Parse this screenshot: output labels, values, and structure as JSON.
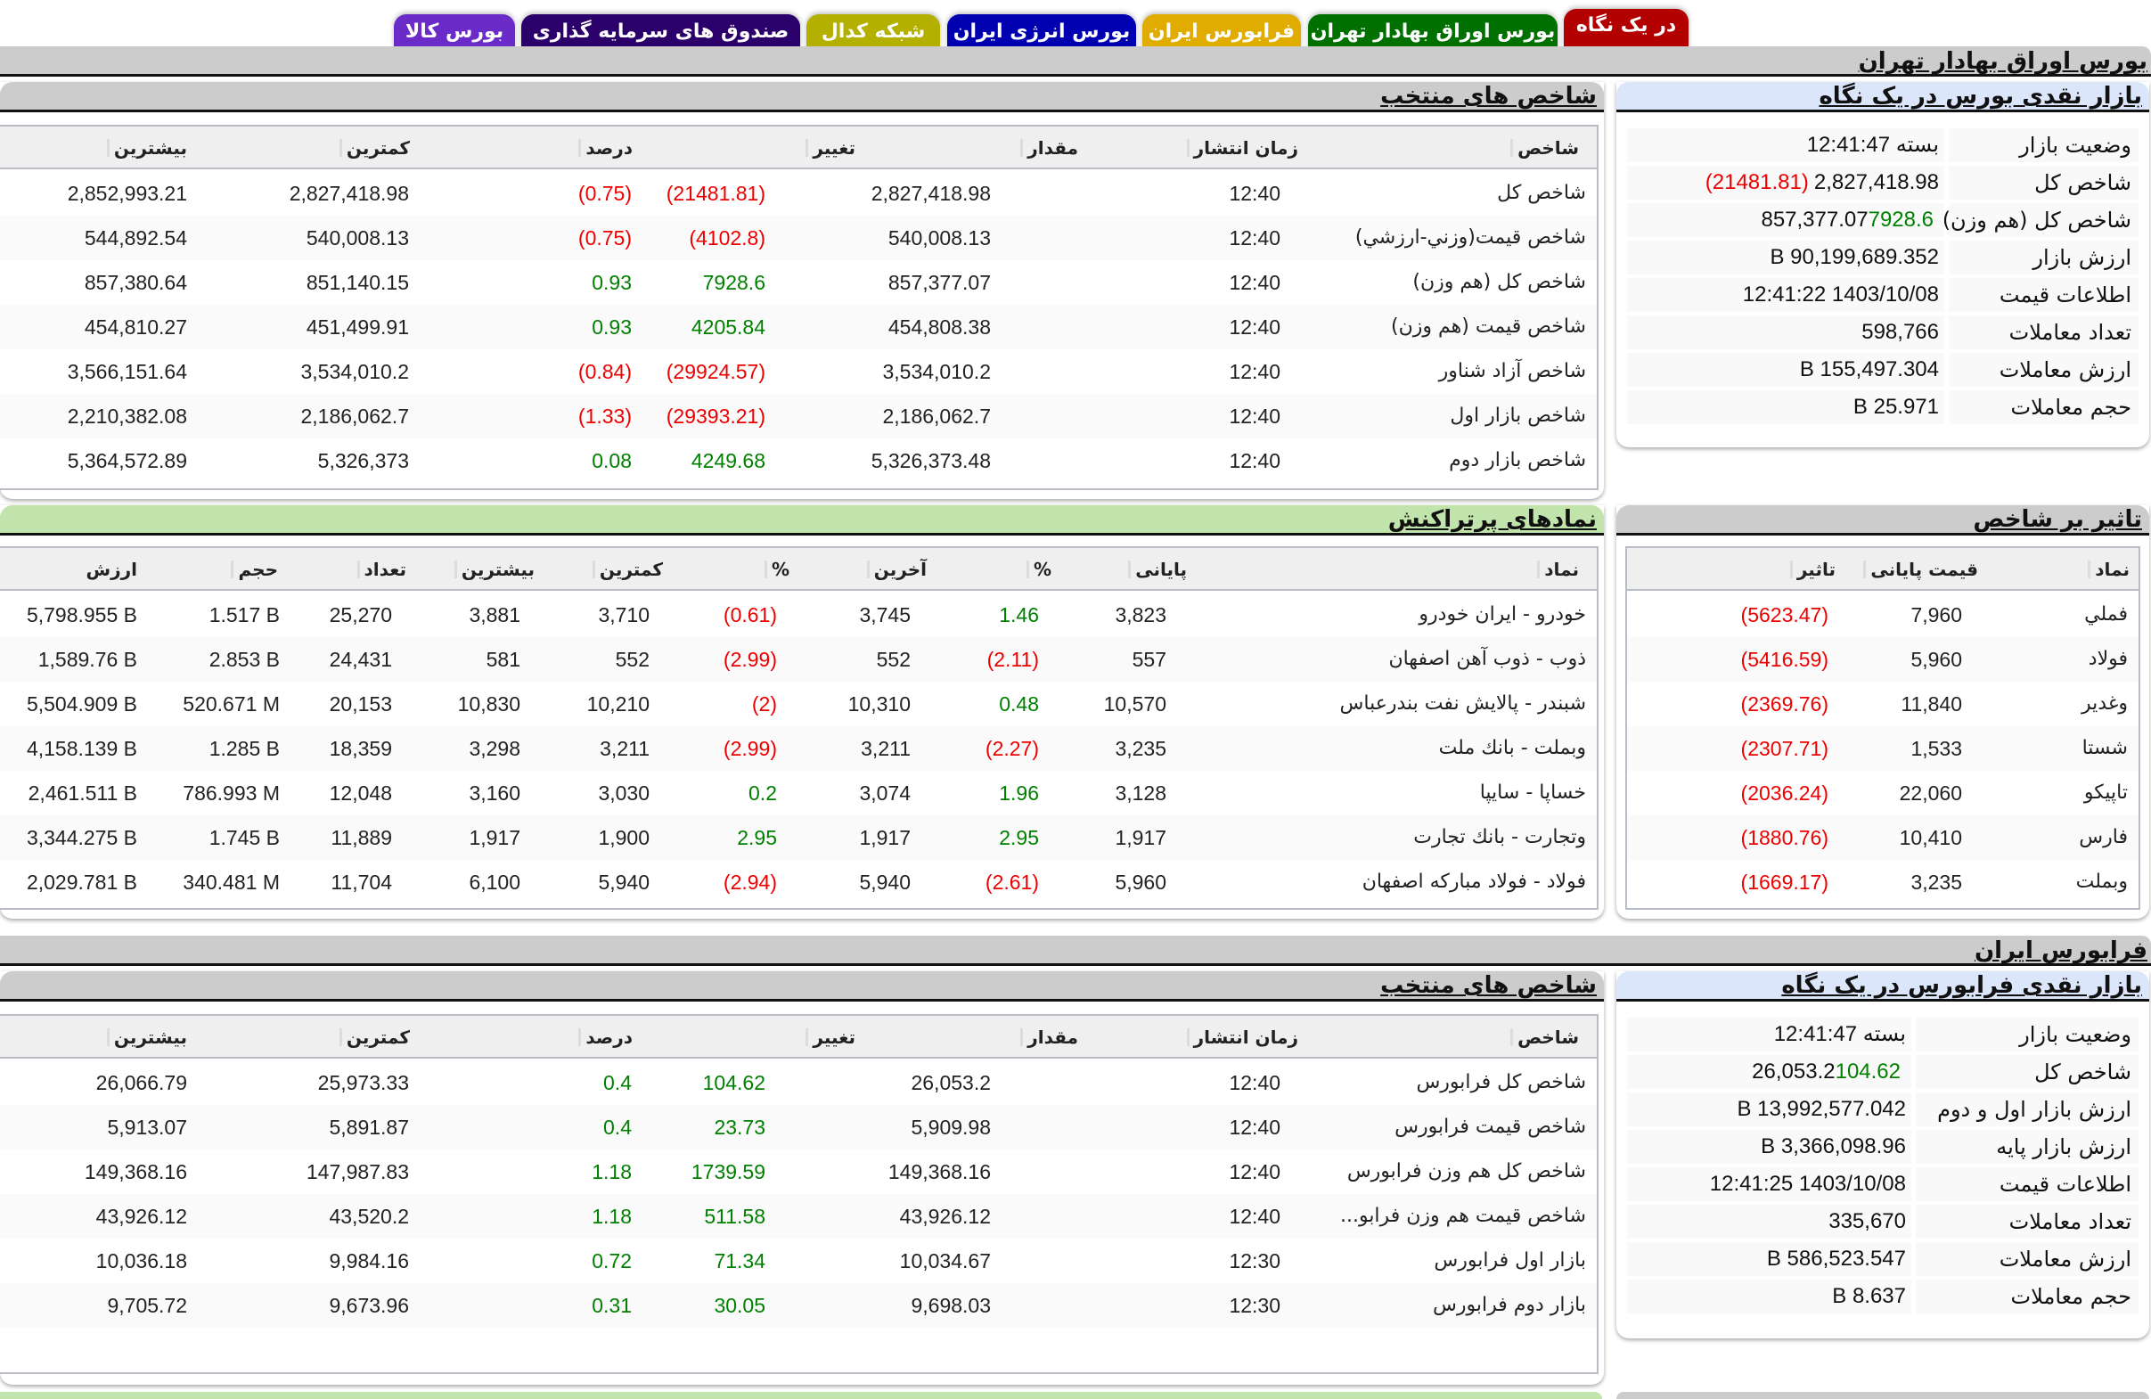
{
  "tabs": [
    {
      "label": "در یک نگاه",
      "color": "#b30000",
      "active": true
    },
    {
      "label": "بورس اوراق بهادار تهران",
      "color": "#007000"
    },
    {
      "label": "فرابورس ایران",
      "color": "#e0ac00"
    },
    {
      "label": "بورس انرژی ایران",
      "color": "#0000b0"
    },
    {
      "label": "شبکه کدال",
      "color": "#b4b000"
    },
    {
      "label": "صندوق های سرمایه گذاری",
      "color": "#2b006a"
    },
    {
      "label": "بورس کالا",
      "color": "#6a2bc8"
    }
  ],
  "tse": {
    "section_title": "بورس اوراق بهادار تهران",
    "overview": {
      "title": "بازار نقدی بورس در یک نگاه",
      "rows": [
        {
          "label": "وضعیت بازار",
          "value": "بسته 12:41:47",
          "change": ""
        },
        {
          "label": "شاخص کل",
          "value": "2,827,418.98",
          "change": "(21481.81)",
          "dir": "neg"
        },
        {
          "label": "شاخص کل (هم وزن)",
          "value": "857,377.07",
          "change": "7928.6",
          "dir": "pos"
        },
        {
          "label": "ارزش بازار",
          "value": "90,199,689.352 B",
          "change": ""
        },
        {
          "label": "اطلاعات قیمت",
          "value": "1403/10/08 12:41:22",
          "change": ""
        },
        {
          "label": "تعداد معاملات",
          "value": "598,766",
          "change": ""
        },
        {
          "label": "ارزش معاملات",
          "value": "155,497.304 B",
          "change": ""
        },
        {
          "label": "حجم معاملات",
          "value": "25.971 B",
          "change": ""
        }
      ]
    },
    "indices": {
      "title": "شاخص های منتخب",
      "columns": [
        "شاخص",
        "زمان انتشار",
        "مقدار",
        "تغییر",
        "درصد",
        "کمترین",
        "بیشترین"
      ],
      "rows": [
        {
          "name": "شاخص کل",
          "time": "12:40",
          "value": "2,827,418.98",
          "change": "(21481.81)",
          "pct": "(0.75)",
          "min": "2,827,418.98",
          "max": "2,852,993.21",
          "dir": "neg"
        },
        {
          "name": "شاخص قیمت(وزني-ارزشي)",
          "time": "12:40",
          "value": "540,008.13",
          "change": "(4102.8)",
          "pct": "(0.75)",
          "min": "540,008.13",
          "max": "544,892.54",
          "dir": "neg"
        },
        {
          "name": "شاخص کل (هم وزن)",
          "time": "12:40",
          "value": "857,377.07",
          "change": "7928.6",
          "pct": "0.93",
          "min": "851,140.15",
          "max": "857,380.64",
          "dir": "pos"
        },
        {
          "name": "شاخص قیمت (هم وزن)",
          "time": "12:40",
          "value": "454,808.38",
          "change": "4205.84",
          "pct": "0.93",
          "min": "451,499.91",
          "max": "454,810.27",
          "dir": "pos"
        },
        {
          "name": "شاخص آزاد شناور",
          "time": "12:40",
          "value": "3,534,010.2",
          "change": "(29924.57)",
          "pct": "(0.84)",
          "min": "3,534,010.2",
          "max": "3,566,151.64",
          "dir": "neg"
        },
        {
          "name": "شاخص بازار اول",
          "time": "12:40",
          "value": "2,186,062.7",
          "change": "(29393.21)",
          "pct": "(1.33)",
          "min": "2,186,062.7",
          "max": "2,210,382.08",
          "dir": "neg"
        },
        {
          "name": "شاخص بازار دوم",
          "time": "12:40",
          "value": "5,326,373.48",
          "change": "4249.68",
          "pct": "0.08",
          "min": "5,326,373",
          "max": "5,364,572.89",
          "dir": "pos"
        }
      ]
    },
    "impact": {
      "title": "تاثیر بر شاخص",
      "columns": [
        "نماد",
        "قیمت پایانی",
        "تاثیر"
      ],
      "rows": [
        {
          "symbol": "فملي",
          "close": "7,960",
          "impact": "(5623.47)"
        },
        {
          "symbol": "فولاد",
          "close": "5,960",
          "impact": "(5416.59)"
        },
        {
          "symbol": "وغدير",
          "close": "11,840",
          "impact": "(2369.76)"
        },
        {
          "symbol": "شستا",
          "close": "1,533",
          "impact": "(2307.71)"
        },
        {
          "symbol": "تاپيكو",
          "close": "22,060",
          "impact": "(2036.24)"
        },
        {
          "symbol": "فارس",
          "close": "10,410",
          "impact": "(1880.76)"
        },
        {
          "symbol": "وبملت",
          "close": "3,235",
          "impact": "(1669.17)"
        }
      ]
    },
    "active_symbols": {
      "title": "نمادهای پرتراکنش",
      "columns": [
        "نماد",
        "پایانی",
        "%",
        "آخرین",
        "%",
        "کمترین",
        "بیشترین",
        "تعداد",
        "حجم",
        "ارزش"
      ],
      "rows": [
        {
          "symbol": "خودرو - ایران خودرو",
          "close": "3,823",
          "close_pct": "1.46",
          "close_dir": "pos",
          "last": "3,745",
          "last_pct": "(0.61)",
          "last_dir": "neg",
          "min": "3,710",
          "max": "3,881",
          "count": "25,270",
          "volume": "1.517 B",
          "value": "5,798.955 B"
        },
        {
          "symbol": "ذوب - ذوب آهن اصفهان",
          "close": "557",
          "close_pct": "(2.11)",
          "close_dir": "neg",
          "last": "552",
          "last_pct": "(2.99)",
          "last_dir": "neg",
          "min": "552",
          "max": "581",
          "count": "24,431",
          "volume": "2.853 B",
          "value": "1,589.76 B"
        },
        {
          "symbol": "شبندر - پالایش نفت بندرعباس",
          "close": "10,570",
          "close_pct": "0.48",
          "close_dir": "pos",
          "last": "10,310",
          "last_pct": "(2)",
          "last_dir": "neg",
          "min": "10,210",
          "max": "10,830",
          "count": "20,153",
          "volume": "520.671 M",
          "value": "5,504.909 B"
        },
        {
          "symbol": "وبملت - بانك ملت",
          "close": "3,235",
          "close_pct": "(2.27)",
          "close_dir": "neg",
          "last": "3,211",
          "last_pct": "(2.99)",
          "last_dir": "neg",
          "min": "3,211",
          "max": "3,298",
          "count": "18,359",
          "volume": "1.285 B",
          "value": "4,158.139 B"
        },
        {
          "symbol": "خساپا - سايپا",
          "close": "3,128",
          "close_pct": "1.96",
          "close_dir": "pos",
          "last": "3,074",
          "last_pct": "0.2",
          "last_dir": "pos",
          "min": "3,030",
          "max": "3,160",
          "count": "12,048",
          "volume": "786.993 M",
          "value": "2,461.511 B"
        },
        {
          "symbol": "وتجارت - بانك تجارت",
          "close": "1,917",
          "close_pct": "2.95",
          "close_dir": "pos",
          "last": "1,917",
          "last_pct": "2.95",
          "last_dir": "pos",
          "min": "1,900",
          "max": "1,917",
          "count": "11,889",
          "volume": "1.745 B",
          "value": "3,344.275 B"
        },
        {
          "symbol": "فولاد - فولاد مباركه اصفهان",
          "close": "5,960",
          "close_pct": "(2.61)",
          "close_dir": "neg",
          "last": "5,940",
          "last_pct": "(2.94)",
          "last_dir": "neg",
          "min": "5,940",
          "max": "6,100",
          "count": "11,704",
          "volume": "340.481 M",
          "value": "2,029.781 B"
        }
      ]
    }
  },
  "ifb": {
    "section_title": "فرابورس ایران",
    "overview": {
      "title": "بازار نقدی فرابورس در یک نگاه",
      "rows": [
        {
          "label": "وضعیت بازار",
          "value": "بسته 12:41:47",
          "change": ""
        },
        {
          "label": "شاخص کل",
          "value": "26,053.2",
          "change": "104.62",
          "dir": "pos"
        },
        {
          "label": "ارزش بازار اول و دوم",
          "value": "13,992,577.042 B",
          "change": ""
        },
        {
          "label": "ارزش بازار پایه",
          "value": "3,366,098.96 B",
          "change": ""
        },
        {
          "label": "اطلاعات قیمت",
          "value": "1403/10/08 12:41:25",
          "change": ""
        },
        {
          "label": "تعداد معاملات",
          "value": "335,670",
          "change": ""
        },
        {
          "label": "ارزش معاملات",
          "value": "586,523.547 B",
          "change": ""
        },
        {
          "label": "حجم معاملات",
          "value": "8.637 B",
          "change": ""
        }
      ]
    },
    "indices": {
      "title": "شاخص های منتخب",
      "columns": [
        "شاخص",
        "زمان انتشار",
        "مقدار",
        "تغییر",
        "درصد",
        "کمترین",
        "بیشترین"
      ],
      "rows": [
        {
          "name": "شاخص کل فرابورس",
          "time": "12:40",
          "value": "26,053.2",
          "change": "104.62",
          "pct": "0.4",
          "min": "25,973.33",
          "max": "26,066.79",
          "dir": "pos"
        },
        {
          "name": "شاخص قیمت فرابورس",
          "time": "12:40",
          "value": "5,909.98",
          "change": "23.73",
          "pct": "0.4",
          "min": "5,891.87",
          "max": "5,913.07",
          "dir": "pos"
        },
        {
          "name": "شاخص کل هم وزن فرابورس",
          "time": "12:40",
          "value": "149,368.16",
          "change": "1739.59",
          "pct": "1.18",
          "min": "147,987.83",
          "max": "149,368.16",
          "dir": "pos"
        },
        {
          "name": "شاخص قیمت هم وزن فرابو...",
          "time": "12:40",
          "value": "43,926.12",
          "change": "511.58",
          "pct": "1.18",
          "min": "43,520.2",
          "max": "43,926.12",
          "dir": "pos"
        },
        {
          "name": "بازار اول فرابورس",
          "time": "12:30",
          "value": "10,034.67",
          "change": "71.34",
          "pct": "0.72",
          "min": "9,984.16",
          "max": "10,036.18",
          "dir": "pos"
        },
        {
          "name": "بازار دوم فرابورس",
          "time": "12:30",
          "value": "9,698.03",
          "change": "30.05",
          "pct": "0.31",
          "min": "9,673.96",
          "max": "9,705.72",
          "dir": "pos"
        }
      ]
    }
  },
  "colors": {
    "negative": "#ee0000",
    "positive": "#008000",
    "section_bar": "#cccccc",
    "overview_head": "#dbe6fb",
    "active_head": "#c0e4ac"
  }
}
